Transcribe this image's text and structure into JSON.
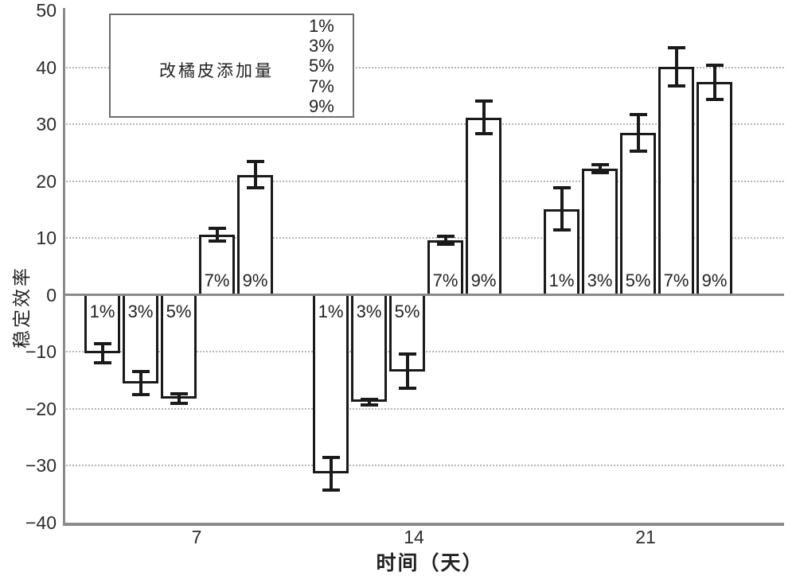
{
  "chart_data": {
    "type": "bar",
    "title": "",
    "xlabel": "时间（天）",
    "ylabel": "稳定效率",
    "categories": [
      "7",
      "14",
      "21"
    ],
    "series": [
      {
        "name": "1%",
        "values": [
          -10.2,
          -31.4,
          15.1
        ],
        "errors": [
          1.7,
          2.9,
          3.7
        ]
      },
      {
        "name": "3%",
        "values": [
          -15.5,
          -18.8,
          22.2
        ],
        "errors": [
          2.0,
          0.5,
          0.7
        ]
      },
      {
        "name": "5%",
        "values": [
          -18.2,
          -13.4,
          28.5
        ],
        "errors": [
          0.8,
          3.0,
          3.2
        ]
      },
      {
        "name": "7%",
        "values": [
          10.6,
          9.6,
          40.1
        ],
        "errors": [
          1.1,
          0.7,
          3.4
        ]
      },
      {
        "name": "9%",
        "values": [
          21.1,
          31.2,
          37.4
        ],
        "errors": [
          2.3,
          2.8,
          3.0
        ]
      }
    ],
    "bar_labels_inside_at_baseline": true,
    "error_bars": "capped, symmetric",
    "ylim": [
      -40,
      50
    ],
    "yticks": [
      "50",
      "40",
      "30",
      "20",
      "10",
      "0",
      "-10",
      "-20",
      "-30",
      "-40"
    ],
    "grid": "horizontal-dotted",
    "legend": {
      "title": "改橘皮添加量",
      "entries": [
        "1%",
        "3%",
        "5%",
        "7%",
        "9%"
      ],
      "position": "top-left"
    },
    "colors": {
      "bar_fill": "#ffffff",
      "bar_border": "#1a1a1a",
      "error_bar": "#1a1a1a",
      "grid": "#b5b5b5",
      "axis": "#8a8a8a",
      "text": "#2b2b2b"
    }
  }
}
